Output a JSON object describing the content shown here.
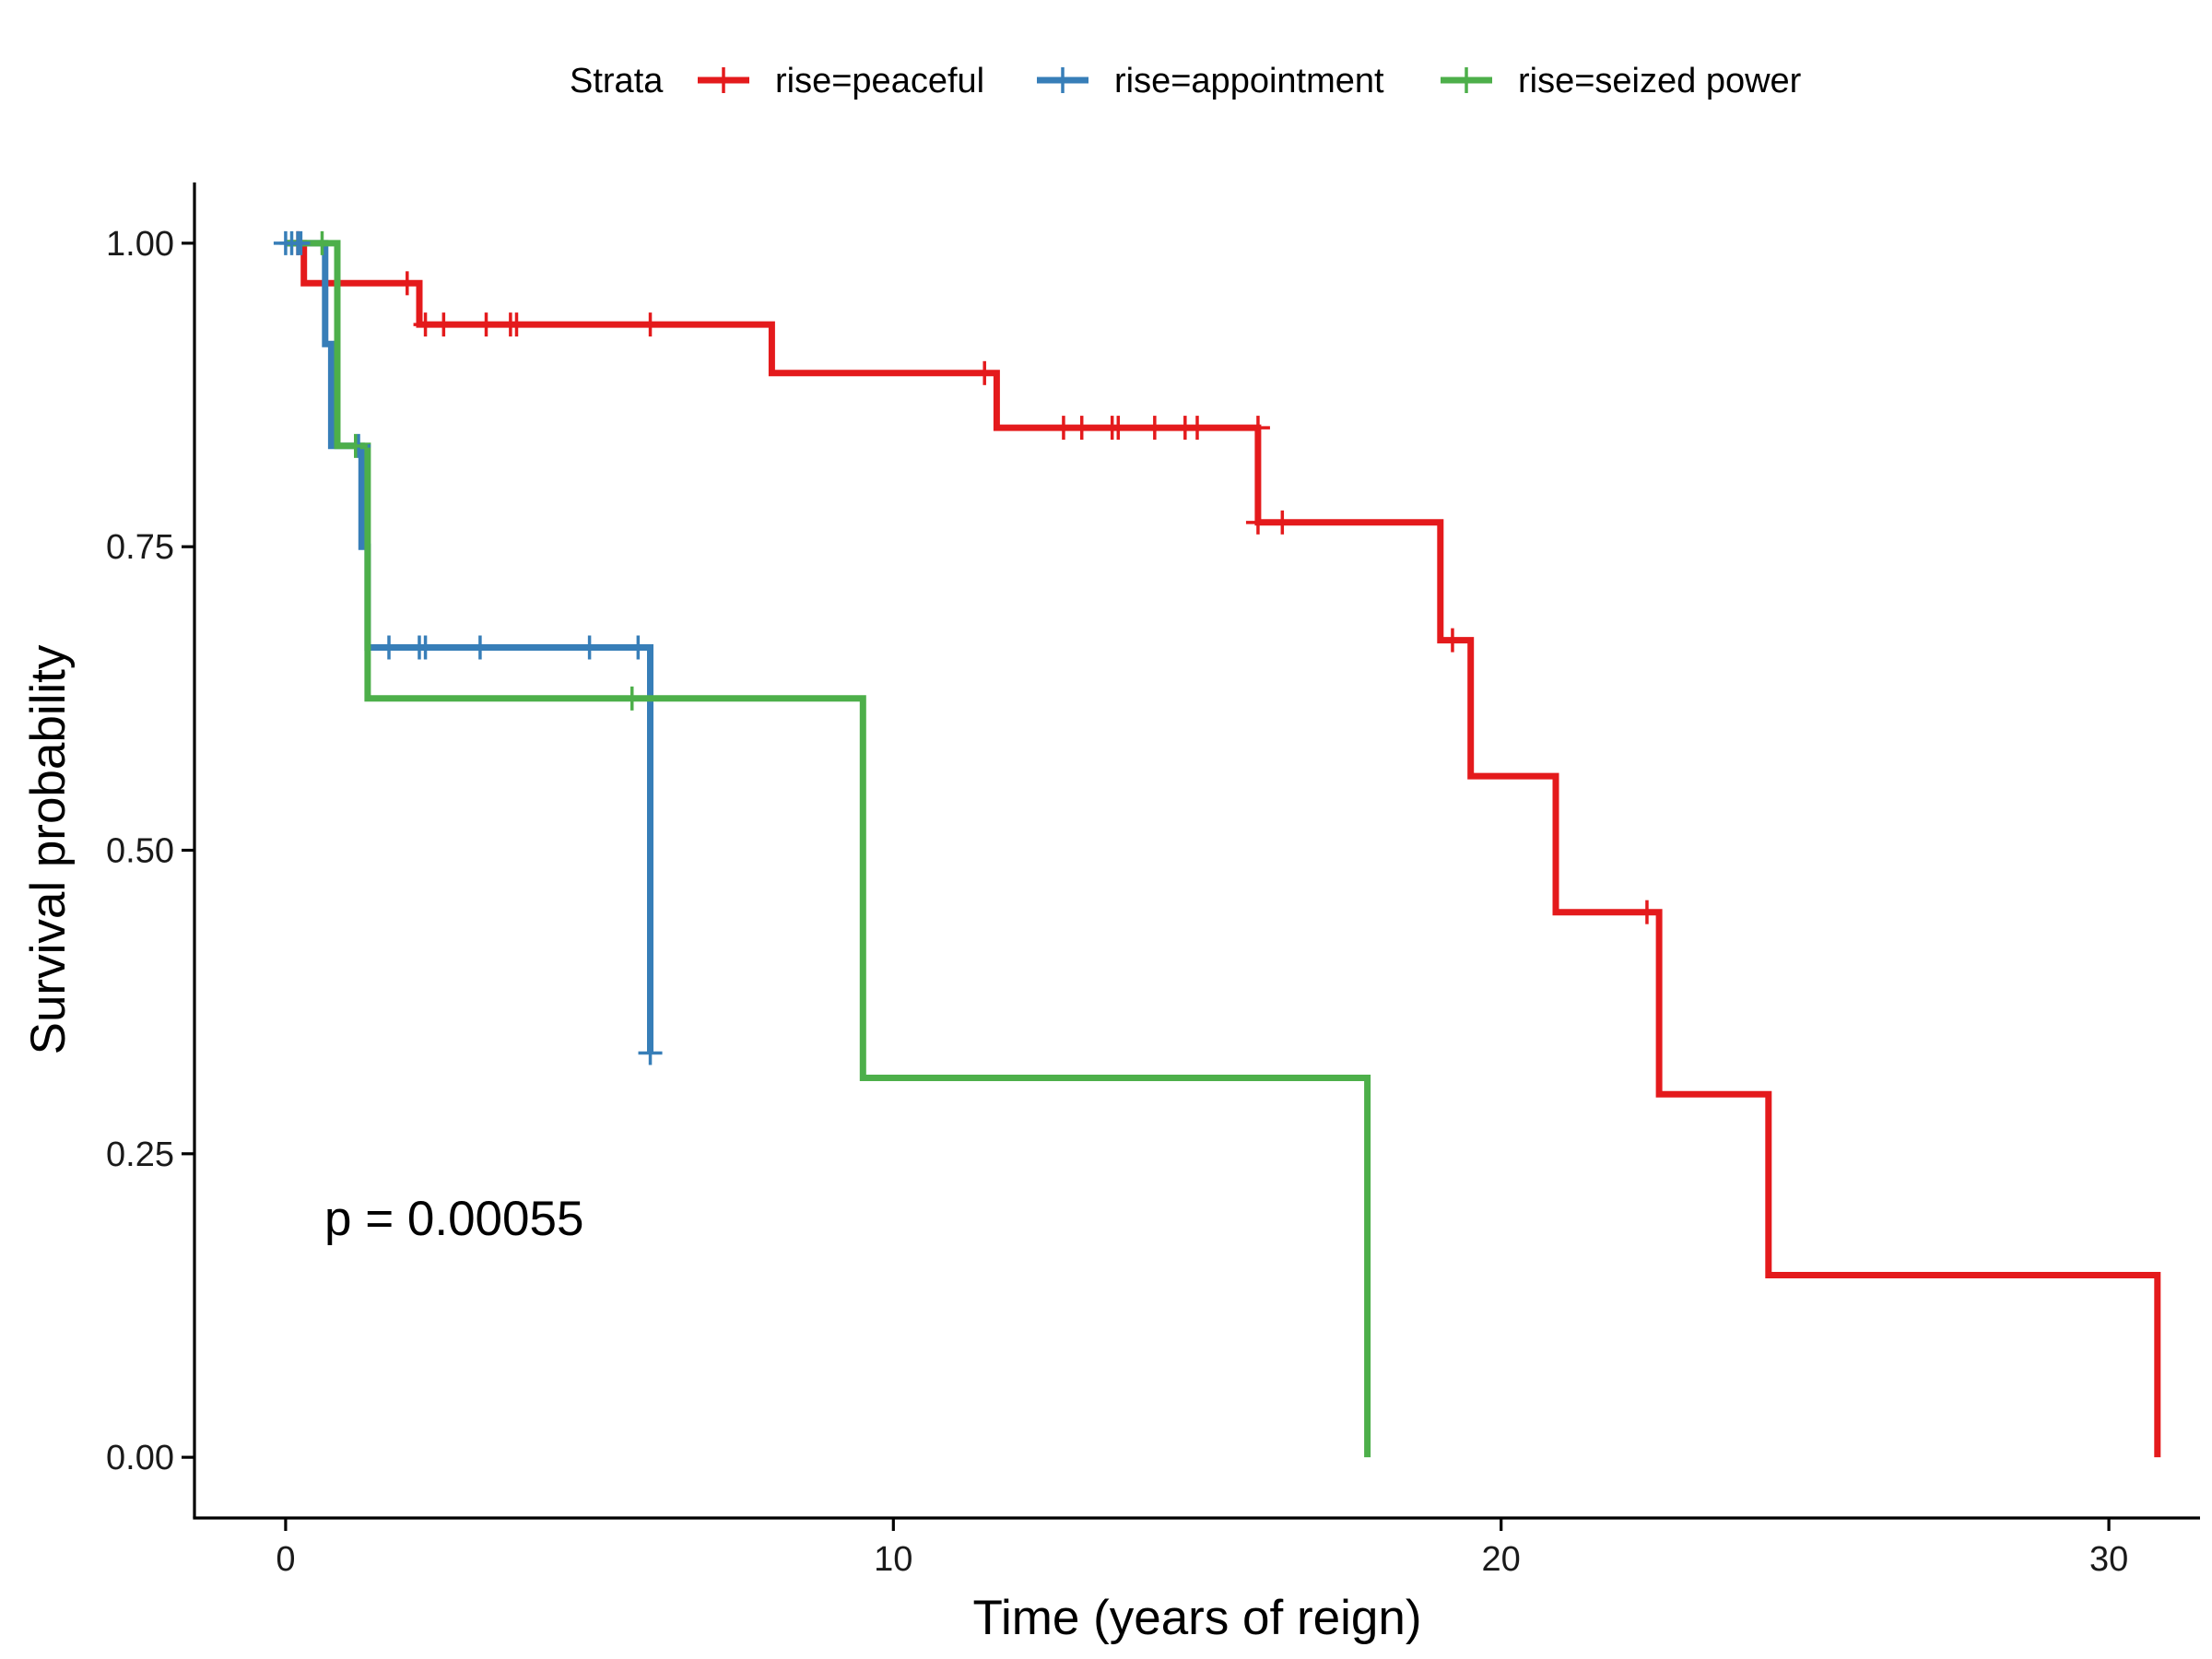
{
  "chart_data": {
    "type": "line",
    "subtype": "kaplan-meier",
    "title": "",
    "xlabel": "Time (years of reign)",
    "ylabel": "Survival probability",
    "xlim": [
      -1.5,
      31.5
    ],
    "ylim": [
      -0.05,
      1.05
    ],
    "x_ticks": [
      0,
      10,
      20,
      30
    ],
    "x_tick_labels": [
      "0",
      "10",
      "20",
      "30"
    ],
    "y_ticks": [
      0,
      0.25,
      0.5,
      0.75,
      1.0
    ],
    "y_tick_labels": [
      "0.00",
      "0.25",
      "0.50",
      "0.75",
      "1.00"
    ],
    "grid": false,
    "legend": {
      "title": "Strata",
      "position": "top"
    },
    "annotation": "p = 0.00055",
    "series": [
      {
        "name": "rise=peaceful",
        "color": "#E41A1C",
        "steps": [
          [
            0,
            1.0
          ],
          [
            0.3,
            0.967
          ],
          [
            2.2,
            0.933
          ],
          [
            8.0,
            0.893
          ],
          [
            11.7,
            0.848
          ],
          [
            16.0,
            0.77
          ],
          [
            19.0,
            0.673
          ],
          [
            19.5,
            0.561
          ],
          [
            20.9,
            0.449
          ],
          [
            22.6,
            0.299
          ],
          [
            24.4,
            0.15
          ],
          [
            30.8,
            0.0
          ]
        ],
        "censored": [
          [
            0.2,
            1.0
          ],
          [
            2.0,
            0.967
          ],
          [
            2.3,
            0.933
          ],
          [
            2.6,
            0.933
          ],
          [
            3.3,
            0.933
          ],
          [
            3.7,
            0.933
          ],
          [
            3.8,
            0.933
          ],
          [
            6.0,
            0.933
          ],
          [
            11.5,
            0.893
          ],
          [
            12.8,
            0.848
          ],
          [
            13.1,
            0.848
          ],
          [
            13.6,
            0.848
          ],
          [
            13.7,
            0.848
          ],
          [
            14.3,
            0.848
          ],
          [
            14.8,
            0.848
          ],
          [
            15.0,
            0.848
          ],
          [
            16.0,
            0.848
          ],
          [
            16.0,
            0.77
          ],
          [
            16.4,
            0.77
          ],
          [
            19.2,
            0.673
          ],
          [
            22.4,
            0.449
          ]
        ]
      },
      {
        "name": "rise=appointment",
        "color": "#377EB8",
        "steps": [
          [
            0,
            1.0
          ],
          [
            0.65,
            0.917
          ],
          [
            0.75,
            0.833
          ],
          [
            1.25,
            0.75
          ],
          [
            1.35,
            0.667
          ],
          [
            6.0,
            0.333
          ]
        ],
        "end_x": 6.0,
        "censored": [
          [
            0.0,
            1.0
          ],
          [
            0.1,
            1.0
          ],
          [
            0.2,
            1.0
          ],
          [
            0.25,
            1.0
          ],
          [
            1.2,
            0.833
          ],
          [
            1.7,
            0.667
          ],
          [
            2.2,
            0.667
          ],
          [
            2.3,
            0.667
          ],
          [
            3.2,
            0.667
          ],
          [
            5.0,
            0.667
          ],
          [
            5.8,
            0.667
          ],
          [
            6.0,
            0.333
          ]
        ]
      },
      {
        "name": "rise=seized power",
        "color": "#4DAF4A",
        "steps": [
          [
            0,
            1.0
          ],
          [
            0.85,
            0.833
          ],
          [
            1.35,
            0.625
          ],
          [
            9.5,
            0.3125
          ],
          [
            17.8,
            0.0
          ]
        ],
        "censored": [
          [
            0.6,
            1.0
          ],
          [
            1.15,
            0.833
          ],
          [
            5.7,
            0.625
          ]
        ]
      }
    ]
  }
}
